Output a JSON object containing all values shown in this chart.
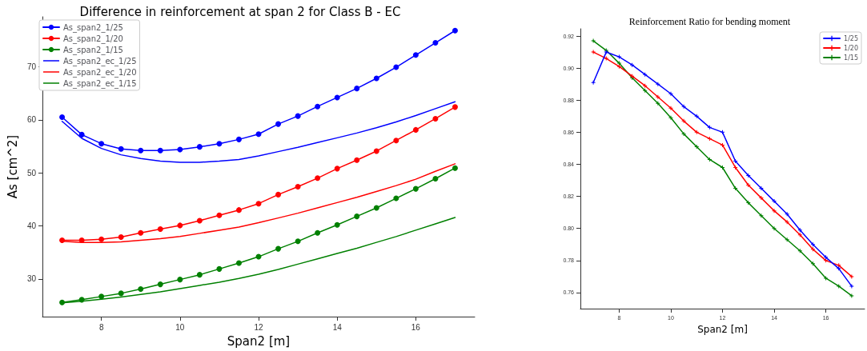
{
  "chart_data": [
    {
      "type": "line",
      "title": "Difference in reinforcement at span 2 for Class B - EC",
      "xlabel": "Span2 [m]",
      "ylabel": "As [cm^2]",
      "x": [
        7,
        7.5,
        8,
        8.5,
        9,
        9.5,
        10,
        10.5,
        11,
        11.5,
        12,
        12.5,
        13,
        13.5,
        14,
        14.5,
        15,
        15.5,
        16,
        16.5,
        17
      ],
      "xlim": [
        6.5,
        17.5
      ],
      "xticks": [
        8,
        10,
        12,
        14,
        16
      ],
      "ylim": [
        22.9,
        79.4
      ],
      "yticks": [
        30,
        40,
        50,
        60,
        70
      ],
      "grid": false,
      "legend": "top left",
      "series": [
        {
          "name": "As_span2_1/25",
          "color": "#0000ff",
          "marker": "circle",
          "values": [
            60.5,
            57.2,
            55.5,
            54.5,
            54.2,
            54.2,
            54.4,
            54.9,
            55.5,
            56.3,
            57.3,
            59.2,
            60.7,
            62.5,
            64.2,
            65.9,
            67.8,
            69.9,
            72.2,
            74.5,
            76.8
          ]
        },
        {
          "name": "As_span2_1/20",
          "color": "#ff0000",
          "marker": "circle",
          "values": [
            37.3,
            37.3,
            37.5,
            37.9,
            38.7,
            39.4,
            40.1,
            41.0,
            42.0,
            43.0,
            44.2,
            45.9,
            47.4,
            49.0,
            50.8,
            52.4,
            54.1,
            56.1,
            58.1,
            60.2,
            62.4
          ]
        },
        {
          "name": "As_span2_1/15",
          "color": "#008000",
          "marker": "circle",
          "values": [
            25.6,
            26.1,
            26.7,
            27.3,
            28.1,
            29.0,
            29.9,
            30.8,
            31.9,
            33.0,
            34.2,
            35.7,
            37.1,
            38.7,
            40.2,
            41.8,
            43.4,
            45.2,
            47.0,
            48.9,
            50.9
          ]
        },
        {
          "name": "As_span2_ec_1/25",
          "color": "#0000ff",
          "marker": "none",
          "values": [
            59.7,
            56.5,
            54.6,
            53.4,
            52.7,
            52.2,
            52.0,
            52.0,
            52.2,
            52.5,
            53.2,
            54.0,
            54.8,
            55.7,
            56.6,
            57.5,
            58.5,
            59.6,
            60.8,
            62.1,
            63.4
          ]
        },
        {
          "name": "As_span2_ec_1/20",
          "color": "#ff0000",
          "marker": "none",
          "values": [
            37.1,
            36.9,
            36.9,
            37.0,
            37.3,
            37.6,
            38.0,
            38.6,
            39.2,
            39.8,
            40.6,
            41.5,
            42.4,
            43.4,
            44.4,
            45.4,
            46.5,
            47.6,
            48.8,
            50.3,
            51.7
          ]
        },
        {
          "name": "As_span2_ec_1/15",
          "color": "#008000",
          "marker": "none",
          "values": [
            25.5,
            25.8,
            26.2,
            26.6,
            27.1,
            27.6,
            28.2,
            28.8,
            29.4,
            30.1,
            30.9,
            31.8,
            32.8,
            33.8,
            34.8,
            35.8,
            36.9,
            38.0,
            39.2,
            40.4,
            41.6
          ]
        }
      ]
    },
    {
      "type": "line",
      "title": "Reinforcement Ratio for bending moment",
      "xlabel": "Span2 [m]",
      "x": [
        7,
        7.5,
        8,
        8.5,
        9,
        9.5,
        10,
        10.5,
        11,
        11.5,
        12,
        12.5,
        13,
        13.5,
        14,
        14.5,
        15,
        15.5,
        16,
        16.5,
        17
      ],
      "xlim": [
        6.5,
        17.5
      ],
      "xticks": [
        8,
        10,
        12,
        14,
        16
      ],
      "ylim": [
        0.75,
        0.9245
      ],
      "yticks": [
        {
          "value": 0.76,
          "label": "0.76"
        },
        {
          "value": 0.78,
          "label": "0.78"
        },
        {
          "value": 0.8,
          "label": "0.80"
        },
        {
          "value": 0.82,
          "label": "0.82"
        },
        {
          "value": 0.84,
          "label": "0.84"
        },
        {
          "value": 0.86,
          "label": "0.86"
        },
        {
          "value": 0.88,
          "label": "0.88"
        },
        {
          "value": 0.9,
          "label": "0.90"
        },
        {
          "value": 0.92,
          "label": "0.92"
        }
      ],
      "grid": false,
      "legend": "top right",
      "marker": "cross",
      "series": [
        {
          "name": "1/25",
          "color": "#0000ff",
          "values": [
            0.891,
            0.91,
            0.907,
            0.902,
            0.896,
            0.89,
            0.884,
            0.876,
            0.87,
            0.863,
            0.86,
            0.842,
            0.833,
            0.825,
            0.817,
            0.809,
            0.799,
            0.79,
            0.782,
            0.775,
            0.764
          ]
        },
        {
          "name": "1/20",
          "color": "#ff0000",
          "values": [
            0.91,
            0.906,
            0.901,
            0.895,
            0.889,
            0.882,
            0.875,
            0.867,
            0.86,
            0.856,
            0.852,
            0.838,
            0.827,
            0.819,
            0.811,
            0.804,
            0.796,
            0.787,
            0.78,
            0.777,
            0.77
          ]
        },
        {
          "name": "1/15",
          "color": "#008000",
          "values": [
            0.917,
            0.911,
            0.903,
            0.894,
            0.886,
            0.878,
            0.869,
            0.859,
            0.851,
            0.843,
            0.838,
            0.825,
            0.816,
            0.808,
            0.8,
            0.793,
            0.786,
            0.778,
            0.769,
            0.764,
            0.758
          ]
        }
      ]
    }
  ]
}
